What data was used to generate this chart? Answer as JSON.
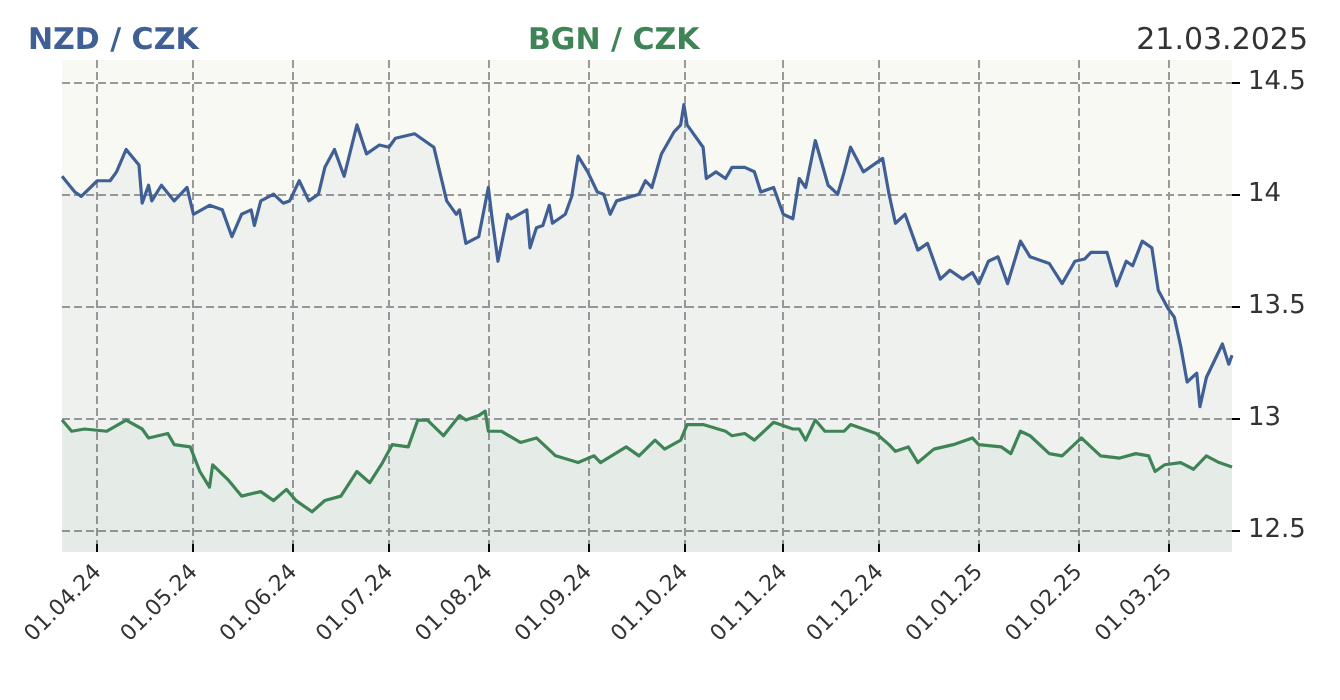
{
  "chart_data": {
    "type": "area",
    "legend": "top",
    "grid": true,
    "annotations": [
      "21.03.2025"
    ],
    "xlim": [
      "2024-03-21",
      "2025-03-21"
    ],
    "ylim": [
      12.4,
      14.6
    ],
    "yticks": [
      12.5,
      13,
      13.5,
      14,
      14.5
    ],
    "xticks": [
      {
        "value": "2024-04-01",
        "label": "01.04.24"
      },
      {
        "value": "2024-05-01",
        "label": "01.05.24"
      },
      {
        "value": "2024-06-01",
        "label": "01.06.24"
      },
      {
        "value": "2024-07-01",
        "label": "01.07.24"
      },
      {
        "value": "2024-08-01",
        "label": "01.08.24"
      },
      {
        "value": "2024-09-01",
        "label": "01.09.24"
      },
      {
        "value": "2024-10-01",
        "label": "01.10.24"
      },
      {
        "value": "2024-11-01",
        "label": "01.11.24"
      },
      {
        "value": "2024-12-01",
        "label": "01.12.24"
      },
      {
        "value": "2025-01-01",
        "label": "01.01.25"
      },
      {
        "value": "2025-02-01",
        "label": "01.02.25"
      },
      {
        "value": "2025-03-01",
        "label": "01.03.25"
      }
    ],
    "series": [
      {
        "name": "NZD / CZK",
        "color": "#3f5f95",
        "x": [
          "2024-03-21",
          "2024-03-25",
          "2024-03-27",
          "2024-04-01",
          "2024-04-05",
          "2024-04-07",
          "2024-04-10",
          "2024-04-14",
          "2024-04-15",
          "2024-04-17",
          "2024-04-18",
          "2024-04-21",
          "2024-04-25",
          "2024-04-29",
          "2024-05-01",
          "2024-05-06",
          "2024-05-10",
          "2024-05-13",
          "2024-05-16",
          "2024-05-19",
          "2024-05-20",
          "2024-05-22",
          "2024-05-26",
          "2024-05-29",
          "2024-05-31",
          "2024-06-03",
          "2024-06-06",
          "2024-06-09",
          "2024-06-11",
          "2024-06-14",
          "2024-06-17",
          "2024-06-21",
          "2024-06-24",
          "2024-06-28",
          "2024-07-01",
          "2024-07-03",
          "2024-07-09",
          "2024-07-15",
          "2024-07-19",
          "2024-07-22",
          "2024-07-23",
          "2024-07-25",
          "2024-07-29",
          "2024-08-01",
          "2024-08-02",
          "2024-08-04",
          "2024-08-07",
          "2024-08-08",
          "2024-08-13",
          "2024-08-14",
          "2024-08-16",
          "2024-08-18",
          "2024-08-20",
          "2024-08-21",
          "2024-08-25",
          "2024-08-27",
          "2024-08-29",
          "2024-09-01",
          "2024-09-04",
          "2024-09-06",
          "2024-09-08",
          "2024-09-10",
          "2024-09-17",
          "2024-09-19",
          "2024-09-21",
          "2024-09-24",
          "2024-09-28",
          "2024-09-30",
          "2024-10-01",
          "2024-10-02",
          "2024-10-07",
          "2024-10-08",
          "2024-10-11",
          "2024-10-14",
          "2024-10-16",
          "2024-10-20",
          "2024-10-23",
          "2024-10-25",
          "2024-10-29",
          "2024-11-01",
          "2024-11-04",
          "2024-11-06",
          "2024-11-08",
          "2024-11-11",
          "2024-11-15",
          "2024-11-18",
          "2024-11-20",
          "2024-11-22",
          "2024-11-26",
          "2024-11-29",
          "2024-12-02",
          "2024-12-04",
          "2024-12-06",
          "2024-12-09",
          "2024-12-13",
          "2024-12-16",
          "2024-12-20",
          "2024-12-23",
          "2024-12-27",
          "2024-12-30",
          "2025-01-01",
          "2025-01-04",
          "2025-01-07",
          "2025-01-10",
          "2025-01-14",
          "2025-01-17",
          "2025-01-23",
          "2025-01-27",
          "2025-01-31",
          "2025-02-03",
          "2025-02-05",
          "2025-02-10",
          "2025-02-13",
          "2025-02-16",
          "2025-02-18",
          "2025-02-21",
          "2025-02-24",
          "2025-02-26",
          "2025-03-01",
          "2025-03-03",
          "2025-03-05",
          "2025-03-07",
          "2025-03-10",
          "2025-03-11",
          "2025-03-13",
          "2025-03-18",
          "2025-03-20",
          "2025-03-21"
        ],
        "values": [
          14.08,
          14.01,
          13.99,
          14.06,
          14.06,
          14.1,
          14.2,
          14.13,
          13.96,
          14.04,
          13.97,
          14.04,
          13.97,
          14.03,
          13.91,
          13.95,
          13.93,
          13.81,
          13.91,
          13.93,
          13.86,
          13.97,
          14.0,
          13.96,
          13.97,
          14.06,
          13.97,
          14.0,
          14.12,
          14.2,
          14.08,
          14.31,
          14.18,
          14.22,
          14.21,
          14.25,
          14.27,
          14.21,
          13.97,
          13.91,
          13.93,
          13.78,
          13.81,
          14.03,
          13.91,
          13.7,
          13.91,
          13.89,
          13.93,
          13.76,
          13.85,
          13.86,
          13.95,
          13.87,
          13.91,
          13.99,
          14.17,
          14.1,
          14.01,
          14.0,
          13.91,
          13.97,
          14.0,
          14.06,
          14.03,
          14.18,
          14.28,
          14.31,
          14.4,
          14.31,
          14.21,
          14.07,
          14.1,
          14.07,
          14.12,
          14.12,
          14.1,
          14.01,
          14.03,
          13.91,
          13.89,
          14.07,
          14.03,
          14.24,
          14.04,
          14.0,
          14.1,
          14.21,
          14.1,
          14.13,
          14.16,
          14.0,
          13.87,
          13.91,
          13.75,
          13.78,
          13.62,
          13.66,
          13.62,
          13.65,
          13.6,
          13.7,
          13.72,
          13.6,
          13.79,
          13.72,
          13.69,
          13.6,
          13.7,
          13.71,
          13.74,
          13.74,
          13.59,
          13.7,
          13.68,
          13.79,
          13.76,
          13.57,
          13.49,
          13.45,
          13.32,
          13.16,
          13.2,
          13.05,
          13.18,
          13.33,
          13.24,
          13.28
        ]
      },
      {
        "name": "BGN / CZK",
        "color": "#3f8456",
        "x": [
          "2024-03-21",
          "2024-03-24",
          "2024-03-28",
          "2024-04-04",
          "2024-04-10",
          "2024-04-15",
          "2024-04-17",
          "2024-04-23",
          "2024-04-25",
          "2024-04-30",
          "2024-05-03",
          "2024-05-06",
          "2024-05-07",
          "2024-05-12",
          "2024-05-16",
          "2024-05-22",
          "2024-05-26",
          "2024-05-30",
          "2024-06-02",
          "2024-06-07",
          "2024-06-11",
          "2024-06-16",
          "2024-06-21",
          "2024-06-25",
          "2024-06-29",
          "2024-07-02",
          "2024-07-07",
          "2024-07-10",
          "2024-07-13",
          "2024-07-18",
          "2024-07-23",
          "2024-07-25",
          "2024-07-29",
          "2024-07-31",
          "2024-08-01",
          "2024-08-05",
          "2024-08-11",
          "2024-08-16",
          "2024-08-22",
          "2024-08-29",
          "2024-09-03",
          "2024-09-05",
          "2024-09-13",
          "2024-09-17",
          "2024-09-22",
          "2024-09-25",
          "2024-09-30",
          "2024-10-02",
          "2024-10-07",
          "2024-10-14",
          "2024-10-16",
          "2024-10-20",
          "2024-10-23",
          "2024-10-29",
          "2024-11-04",
          "2024-11-06",
          "2024-11-08",
          "2024-11-11",
          "2024-11-14",
          "2024-11-20",
          "2024-11-22",
          "2024-11-30",
          "2024-12-04",
          "2024-12-06",
          "2024-12-10",
          "2024-12-13",
          "2024-12-18",
          "2024-12-24",
          "2024-12-30",
          "2025-01-01",
          "2025-01-08",
          "2025-01-11",
          "2025-01-14",
          "2025-01-17",
          "2025-01-23",
          "2025-01-27",
          "2025-02-02",
          "2025-02-08",
          "2025-02-14",
          "2025-02-19",
          "2025-02-23",
          "2025-02-25",
          "2025-02-28",
          "2025-03-05",
          "2025-03-09",
          "2025-03-13",
          "2025-03-17",
          "2025-03-21"
        ],
        "values": [
          12.99,
          12.94,
          12.95,
          12.94,
          12.99,
          12.95,
          12.91,
          12.93,
          12.88,
          12.87,
          12.76,
          12.69,
          12.79,
          12.72,
          12.65,
          12.67,
          12.63,
          12.68,
          12.63,
          12.58,
          12.63,
          12.65,
          12.76,
          12.71,
          12.8,
          12.88,
          12.87,
          12.99,
          12.99,
          12.92,
          13.01,
          12.99,
          13.01,
          13.03,
          12.94,
          12.94,
          12.89,
          12.91,
          12.83,
          12.8,
          12.83,
          12.8,
          12.87,
          12.83,
          12.9,
          12.86,
          12.9,
          12.97,
          12.97,
          12.94,
          12.92,
          12.93,
          12.9,
          12.98,
          12.95,
          12.95,
          12.9,
          12.99,
          12.94,
          12.94,
          12.97,
          12.93,
          12.88,
          12.85,
          12.87,
          12.8,
          12.86,
          12.88,
          12.91,
          12.88,
          12.87,
          12.84,
          12.94,
          12.92,
          12.84,
          12.83,
          12.91,
          12.83,
          12.82,
          12.84,
          12.83,
          12.76,
          12.79,
          12.8,
          12.77,
          12.83,
          12.8,
          12.78
        ]
      }
    ]
  }
}
